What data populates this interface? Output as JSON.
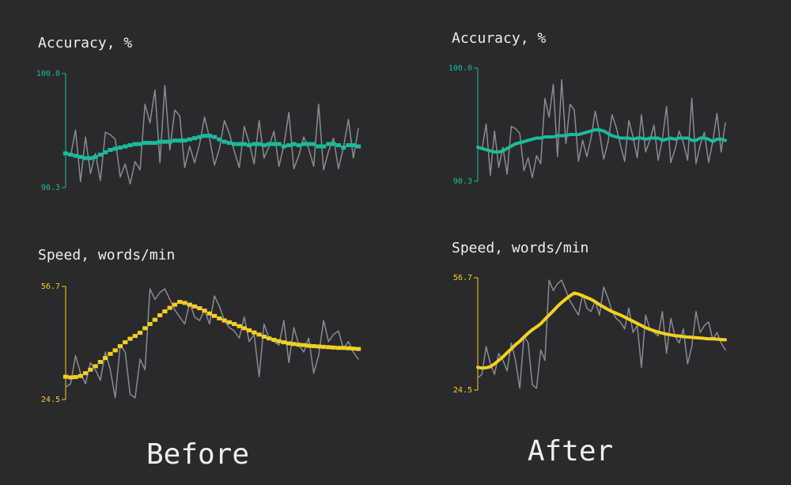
{
  "captions": [
    "Before",
    "After"
  ],
  "chart_data": [
    {
      "type": "line",
      "title": "Accuracy, %",
      "step": true,
      "ylim": [
        90.3,
        100
      ],
      "yticks": [
        {
          "value": 100,
          "label": "100.0"
        },
        {
          "value": 90.3,
          "label": "90.3"
        }
      ],
      "axis_color": "#1abc9c",
      "series": [
        {
          "color": "#8a8a96",
          "values": [
            93.3,
            93.0,
            95.2,
            90.8,
            94.6,
            91.5,
            93.2,
            90.9,
            95.0,
            94.8,
            94.4,
            91.2,
            92.3,
            90.6,
            92.5,
            91.8,
            97.4,
            95.8,
            98.6,
            92.4,
            99.0,
            93.5,
            96.9,
            96.4,
            92.0,
            93.8,
            92.4,
            94.0,
            96.3,
            94.5,
            92.2,
            93.6,
            96.0,
            94.9,
            93.4,
            92.0,
            95.5,
            94.1,
            92.3,
            96.0,
            92.8,
            93.8,
            95.1,
            92.1,
            93.9,
            96.7,
            91.9,
            93.0,
            94.6,
            93.6,
            92.1,
            97.4,
            91.8,
            93.4,
            94.5,
            91.9,
            93.7,
            96.1,
            92.8,
            95.3
          ]
        },
        {
          "color": "#1abc9c",
          "values": [
            93.2,
            93.1,
            93.0,
            92.9,
            92.8,
            92.8,
            92.9,
            93.1,
            93.3,
            93.5,
            93.6,
            93.7,
            93.8,
            93.9,
            94.0,
            94.0,
            94.1,
            94.1,
            94.1,
            94.2,
            94.2,
            94.2,
            94.3,
            94.3,
            94.3,
            94.4,
            94.5,
            94.6,
            94.7,
            94.7,
            94.6,
            94.4,
            94.2,
            94.1,
            94.0,
            94.0,
            94.0,
            93.9,
            94.0,
            94.0,
            93.9,
            94.0,
            94.0,
            94.0,
            93.8,
            93.9,
            94.0,
            93.9,
            94.0,
            94.0,
            94.0,
            93.8,
            93.8,
            94.0,
            94.0,
            93.9,
            93.7,
            93.9,
            93.9,
            93.8
          ]
        }
      ]
    },
    {
      "type": "line",
      "title": "Speed, words/min",
      "step": true,
      "ylim": [
        24.5,
        56.7
      ],
      "yticks": [
        56.7,
        24.5
      ],
      "axis_color": "#f5d020",
      "series": [
        {
          "color": "#8a8a96",
          "values": [
            28,
            29,
            37,
            32,
            29,
            35,
            33,
            30,
            38,
            33,
            25,
            40,
            38,
            26,
            25,
            36,
            33,
            56,
            53,
            55,
            56,
            53,
            50,
            48,
            46,
            52,
            48,
            47,
            50,
            46,
            54,
            51,
            47,
            45,
            44,
            42,
            48,
            41,
            43,
            31,
            46,
            42,
            41,
            40,
            47,
            35,
            45,
            40,
            38,
            42,
            32,
            37,
            47,
            41,
            43,
            44,
            39,
            41,
            38,
            36
          ]
        },
        {
          "color": "#f5d020",
          "values": [
            31.0,
            30.8,
            30.9,
            31.2,
            32.0,
            33.0,
            34.0,
            35.2,
            36.3,
            37.5,
            38.5,
            39.7,
            40.8,
            41.8,
            42.6,
            43.5,
            44.8,
            46.0,
            47.2,
            48.5,
            49.6,
            50.6,
            51.5,
            52.3,
            52.0,
            51.5,
            51.0,
            50.5,
            49.8,
            49.0,
            48.3,
            47.6,
            47.0,
            46.5,
            46.0,
            45.4,
            44.8,
            44.2,
            43.6,
            43.0,
            42.4,
            41.9,
            41.5,
            41.1,
            40.8,
            40.5,
            40.3,
            40.1,
            40.0,
            39.8,
            39.7,
            39.6,
            39.5,
            39.4,
            39.3,
            39.2,
            39.2,
            39.1,
            39.0,
            38.9
          ]
        }
      ]
    },
    {
      "type": "line",
      "title": "Accuracy, %",
      "step": false,
      "ylim": [
        90.3,
        100
      ],
      "yticks": [
        {
          "value": 100,
          "label": "100.0"
        },
        {
          "value": 90.3,
          "label": "90.3"
        }
      ],
      "axis_color": "#1abc9c",
      "series": [
        {
          "color": "#8a8a96",
          "values": [
            93.3,
            93.0,
            95.2,
            90.8,
            94.6,
            91.5,
            93.2,
            90.9,
            95.0,
            94.8,
            94.4,
            91.2,
            92.3,
            90.6,
            92.5,
            91.8,
            97.4,
            95.8,
            98.6,
            92.4,
            99.0,
            93.5,
            96.9,
            96.4,
            92.0,
            93.8,
            92.4,
            94.0,
            96.3,
            94.5,
            92.2,
            93.6,
            96.0,
            94.9,
            93.4,
            92.0,
            95.5,
            94.1,
            92.3,
            96.0,
            92.8,
            93.8,
            95.1,
            92.1,
            93.9,
            96.7,
            91.9,
            93.0,
            94.6,
            93.6,
            92.1,
            97.4,
            91.8,
            93.4,
            94.5,
            91.9,
            93.7,
            96.1,
            92.8,
            95.3
          ]
        },
        {
          "color": "#1abc9c",
          "values": [
            93.2,
            93.1,
            93.0,
            92.9,
            92.8,
            92.8,
            92.9,
            93.1,
            93.3,
            93.5,
            93.6,
            93.7,
            93.8,
            93.9,
            94.0,
            94.0,
            94.1,
            94.1,
            94.1,
            94.2,
            94.2,
            94.2,
            94.3,
            94.3,
            94.3,
            94.4,
            94.5,
            94.6,
            94.7,
            94.7,
            94.6,
            94.4,
            94.2,
            94.1,
            94.0,
            94.0,
            94.0,
            93.9,
            94.0,
            94.0,
            93.9,
            94.0,
            94.0,
            94.0,
            93.8,
            93.9,
            94.0,
            93.9,
            94.0,
            94.0,
            94.0,
            93.8,
            93.8,
            94.0,
            94.0,
            93.9,
            93.7,
            93.9,
            93.9,
            93.8
          ]
        }
      ]
    },
    {
      "type": "line",
      "title": "Speed, words/min",
      "step": false,
      "ylim": [
        24.5,
        56.7
      ],
      "yticks": [
        56.7,
        24.5
      ],
      "axis_color": "#f5d020",
      "series": [
        {
          "color": "#8a8a96",
          "values": [
            28,
            29,
            37,
            32,
            29,
            35,
            33,
            30,
            38,
            33,
            25,
            40,
            38,
            26,
            25,
            36,
            33,
            56,
            53,
            55,
            56,
            53,
            50,
            48,
            46,
            52,
            48,
            47,
            50,
            46,
            54,
            51,
            47,
            45,
            44,
            42,
            48,
            41,
            43,
            31,
            46,
            42,
            41,
            40,
            47,
            35,
            45,
            40,
            38,
            42,
            32,
            37,
            47,
            41,
            43,
            44,
            39,
            41,
            38,
            36
          ]
        },
        {
          "color": "#f5d020",
          "values": [
            31.0,
            30.8,
            30.9,
            31.2,
            32.0,
            33.0,
            34.0,
            35.2,
            36.3,
            37.5,
            38.5,
            39.7,
            40.8,
            41.8,
            42.6,
            43.5,
            44.8,
            46.0,
            47.2,
            48.5,
            49.6,
            50.6,
            51.5,
            52.3,
            52.0,
            51.5,
            51.0,
            50.5,
            49.8,
            49.0,
            48.3,
            47.6,
            47.0,
            46.5,
            46.0,
            45.4,
            44.8,
            44.2,
            43.6,
            43.0,
            42.4,
            41.9,
            41.5,
            41.1,
            40.8,
            40.5,
            40.3,
            40.1,
            40.0,
            39.8,
            39.7,
            39.6,
            39.5,
            39.4,
            39.3,
            39.2,
            39.2,
            39.1,
            39.0,
            38.9
          ]
        }
      ]
    }
  ]
}
